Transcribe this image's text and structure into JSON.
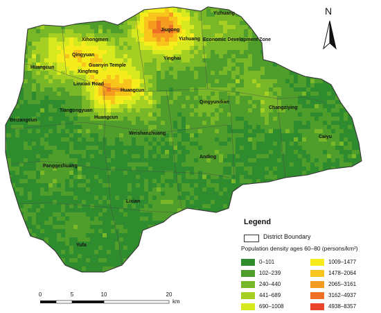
{
  "north_label": "N",
  "place_labels": [
    {
      "id": "yizhuang-north",
      "text": "Yizhuang"
    },
    {
      "id": "jiugong",
      "text": "Jiugong"
    },
    {
      "id": "xihongmen",
      "text": "Xihongmen"
    },
    {
      "id": "qingyuan",
      "text": "Qingyuan"
    },
    {
      "id": "yizhuang-mid",
      "text": "Yizhuang"
    },
    {
      "id": "eco-dev-zone",
      "text": "Economic Development Zone"
    },
    {
      "id": "guanyin-temple",
      "text": "Guanyin Temple"
    },
    {
      "id": "huangcun-west",
      "text": "Huangcun"
    },
    {
      "id": "yinghai",
      "text": "Yinghai"
    },
    {
      "id": "xingfeng",
      "text": "Xingfeng"
    },
    {
      "id": "linxiao-road",
      "text": "Linxiao Road"
    },
    {
      "id": "huangcun-center",
      "text": "Huangcun"
    },
    {
      "id": "qingyundian",
      "text": "Qingyundian"
    },
    {
      "id": "changziying",
      "text": "Changziying"
    },
    {
      "id": "tiangongyuan",
      "text": "Tiangongyuan"
    },
    {
      "id": "beizangcun",
      "text": "Beizangcun"
    },
    {
      "id": "huangcun-south",
      "text": "Huangcun"
    },
    {
      "id": "caiyu",
      "text": "Caiyu"
    },
    {
      "id": "weishanzhuang",
      "text": "Weishanzhuang"
    },
    {
      "id": "anding",
      "text": "Anding"
    },
    {
      "id": "panggezhuang",
      "text": "Panggezhuang"
    },
    {
      "id": "lixian",
      "text": "Lixian"
    },
    {
      "id": "yufa",
      "text": "Yufa"
    }
  ],
  "legend": {
    "title": "Legend",
    "boundary_label": "District Boundary",
    "density_title": "Population density ages 60–80 (persons/km²)",
    "classes": [
      {
        "label": "0–101",
        "color": "#2e8b2e"
      },
      {
        "label": "102–239",
        "color": "#4f9e2b"
      },
      {
        "label": "240–440",
        "color": "#78b728"
      },
      {
        "label": "441–689",
        "color": "#a6cf24"
      },
      {
        "label": "690–1008",
        "color": "#d6e81e"
      },
      {
        "label": "1009–1477",
        "color": "#f6ec1c"
      },
      {
        "label": "1478–2064",
        "color": "#f7c51b"
      },
      {
        "label": "2065–3161",
        "color": "#f59c20"
      },
      {
        "label": "3162–4937",
        "color": "#ef7126"
      },
      {
        "label": "4938–8357",
        "color": "#e9452a"
      }
    ]
  },
  "scale_bar": {
    "ticks": [
      "0",
      "5",
      "10",
      "20"
    ],
    "unit": "km"
  },
  "colors": {
    "boundary": "#4a4a4a",
    "base_green": "#2f8a2c"
  }
}
